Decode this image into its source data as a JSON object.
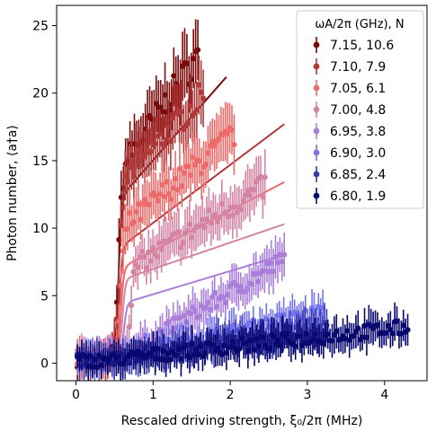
{
  "chart_data": {
    "type": "scatter",
    "xlabel": "Rescaled driving strength, ξ₀/2π (MHz)",
    "ylabel": "Photon number, ⟨a†a⟩",
    "xlim": [
      -0.25,
      4.55
    ],
    "ylim": [
      -1.3,
      26.5
    ],
    "x_ticks": [
      0,
      1,
      2,
      3,
      4
    ],
    "y_ticks": [
      0,
      5,
      10,
      15,
      20,
      25
    ],
    "grid": false,
    "legend_position": "top-right",
    "legend_title": "ωA/2π (GHz), N",
    "series": [
      {
        "name": "7.15,  10.6",
        "color": "#7b0a0a",
        "xmax": 1.58,
        "fit_end": 1.95,
        "fit_low": 0.1,
        "fit_knee": 0.5,
        "fit_center": 0.55,
        "fit_top": 20.0,
        "fit_slope": 6.5,
        "data_low": 0.2,
        "data_knee": 0.45,
        "data_center": 0.55,
        "data_top": 14.0,
        "data_slope": 8.3
      },
      {
        "name": "7.10,  7.9",
        "color": "#b03a3a",
        "xmax": 1.65,
        "fit_end": 2.7,
        "fit_low": 0.1,
        "fit_knee": 0.5,
        "fit_center": 0.56,
        "fit_top": 14.0,
        "fit_slope": 4.3,
        "data_low": 0.3,
        "data_knee": 0.5,
        "data_center": 0.56,
        "data_top": 13.0,
        "data_slope": 6.0
      },
      {
        "name": "7.05,  6.1",
        "color": "#ee6b6b",
        "xmax": 2.05,
        "fit_end": 2.7,
        "fit_low": 0.15,
        "fit_knee": 0.5,
        "fit_center": 0.58,
        "fit_top": 11.5,
        "fit_slope": 3.0,
        "data_low": 0.4,
        "data_knee": 0.6,
        "data_center": 0.58,
        "data_top": 9.5,
        "data_slope": 4.8
      },
      {
        "name": "7.00,  4.8",
        "color": "#d584a4",
        "xmax": 2.45,
        "fit_end": 2.7,
        "fit_low": 0.2,
        "fit_knee": 0.6,
        "fit_center": 0.6,
        "fit_top": 10.0,
        "fit_slope": 1.95,
        "data_low": 0.5,
        "data_knee": 1.2,
        "data_center": 0.7,
        "data_top": 6.5,
        "data_slope": 3.5
      },
      {
        "name": "6.95,  3.8",
        "color": "#aa7fdb",
        "xmax": 2.7,
        "fit_end": 2.7,
        "fit_low": 0.25,
        "fit_knee": 0.8,
        "fit_center": 0.62,
        "fit_top": 7.0,
        "fit_slope": 1.72,
        "data_low": 0.5,
        "data_knee": 3.5,
        "data_center": 1.2,
        "data_top": 0.0,
        "data_slope": 3.4
      },
      {
        "name": "6.90,  3.0",
        "color": "#7474ee",
        "xmax": 3.2,
        "fit_end": 0.0,
        "fit_low": 0.3,
        "fit_knee": 0.0,
        "fit_center": 0.7,
        "fit_top": 0.0,
        "fit_slope": 0.0,
        "data_low": 0.2,
        "data_knee": 0.0,
        "data_center": 0.7,
        "data_top": 0.0,
        "data_slope": 1.25
      },
      {
        "name": "6.85,  2.4",
        "color": "#3a3ab0",
        "xmax": 3.25,
        "fit_end": 0.0,
        "fit_low": 0.3,
        "fit_knee": 0.0,
        "fit_center": 0.7,
        "fit_top": 0.0,
        "fit_slope": 0.0,
        "data_low": 0.2,
        "data_knee": 0.0,
        "data_center": 0.7,
        "data_top": 0.0,
        "data_slope": 0.85
      },
      {
        "name": "6.80,  1.9",
        "color": "#08086e",
        "xmax": 4.3,
        "fit_end": 0.0,
        "fit_low": 0.3,
        "fit_knee": 0.0,
        "fit_center": 0.7,
        "fit_top": 0.0,
        "fit_slope": 0.0,
        "data_low": 0.2,
        "data_knee": 0.0,
        "data_center": 0.7,
        "data_top": 0.0,
        "data_slope": 0.62
      }
    ]
  }
}
